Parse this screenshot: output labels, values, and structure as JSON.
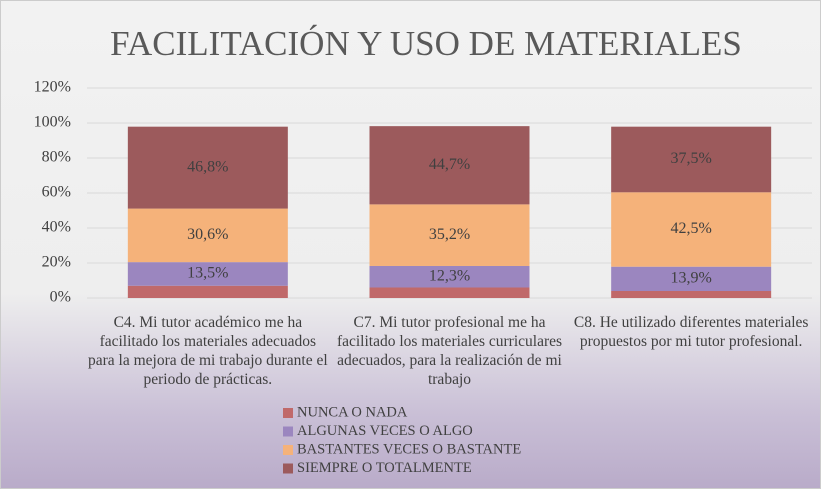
{
  "chart_data": {
    "type": "stacked_bar",
    "title": "FACILITACIÓN Y USO DE MATERIALES",
    "categories": [
      "C4. Mi tutor académico me ha facilitado los materiales adecuados para la mejora de mi trabajo durante el periodo de prácticas.",
      "C7. Mi tutor profesional me ha facilitado los materiales curriculares adecuados, para la realización de mi trabajo",
      "C8. He utilizado diferentes materiales propuestos por mi tutor profesional."
    ],
    "series": [
      {
        "name": "NUNCA O NADA",
        "color": "#c0696a",
        "values": [
          7,
          6,
          4
        ]
      },
      {
        "name": "ALGUNAS VECES O ALGO",
        "color": "#9b86bf",
        "values": [
          13.5,
          12.3,
          13.9
        ],
        "value_labels": [
          "13,5%",
          "12,3%",
          "13,9%"
        ]
      },
      {
        "name": "BASTANTES VECES O BASTANTE",
        "color": "#f5b27a",
        "values": [
          30.6,
          35.2,
          42.5
        ],
        "value_labels": [
          "30,6%",
          "35,2%",
          "42,5%"
        ]
      },
      {
        "name": "SIEMPRE O TOTALMENTE",
        "color": "#9c5a5c",
        "values": [
          46.8,
          44.7,
          37.5
        ],
        "value_labels": [
          "46,8%",
          "44,7%",
          "37,5%"
        ]
      }
    ],
    "ylim": [
      0,
      120
    ],
    "yticks": [
      {
        "value": 0,
        "label": "0%"
      },
      {
        "value": 20,
        "label": "20%"
      },
      {
        "value": 40,
        "label": "40%"
      },
      {
        "value": 60,
        "label": "60%"
      },
      {
        "value": 80,
        "label": "80%"
      },
      {
        "value": 100,
        "label": "100%"
      },
      {
        "value": 120,
        "label": "120%"
      }
    ],
    "grid": true,
    "legend": "bottom"
  }
}
